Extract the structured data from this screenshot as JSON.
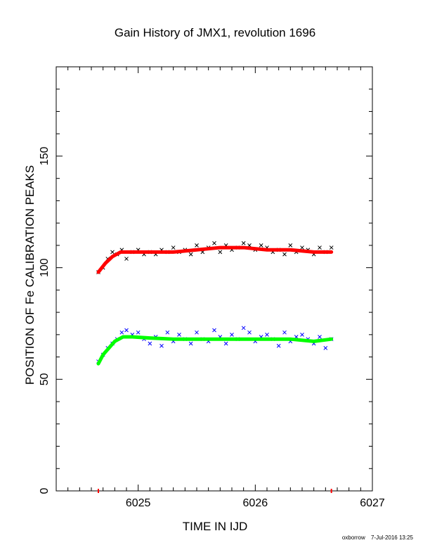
{
  "title": "Gain History of JMX1, revolution 1696",
  "footer": {
    "user": "oxborrow",
    "timestamp": "7-Jul-2016 13:25"
  },
  "chart_data": {
    "type": "scatter",
    "title": "Gain History of JMX1, revolution 1696",
    "xlabel": "TIME IN IJD",
    "ylabel": "POSITION OF Fe CALIBRATION PEAKS",
    "xlim": [
      6024.3,
      6027
    ],
    "ylim": [
      0,
      190
    ],
    "xticks": [
      6025,
      6026,
      6027
    ],
    "yticks": [
      0,
      50,
      100,
      150
    ],
    "grid": false,
    "x_range_markers": [
      6024.66,
      6026.65
    ],
    "series": [
      {
        "kind": "points",
        "marker": "x",
        "color": "#000000",
        "x": [
          6024.66,
          6024.7,
          6024.74,
          6024.78,
          6024.82,
          6024.86,
          6024.9,
          6024.95,
          6025.0,
          6025.05,
          6025.1,
          6025.15,
          6025.2,
          6025.25,
          6025.3,
          6025.35,
          6025.4,
          6025.45,
          6025.5,
          6025.55,
          6025.6,
          6025.65,
          6025.7,
          6025.75,
          6025.8,
          6025.85,
          6025.9,
          6025.95,
          6026.0,
          6026.05,
          6026.1,
          6026.15,
          6026.2,
          6026.25,
          6026.3,
          6026.35,
          6026.4,
          6026.45,
          6026.5,
          6026.55,
          6026.6,
          6026.65
        ],
        "y": [
          98,
          100,
          104,
          107,
          106,
          108,
          104,
          107,
          108,
          106,
          107,
          106,
          108,
          107,
          109,
          107,
          108,
          106,
          110,
          107,
          109,
          111,
          107,
          110,
          108,
          109,
          111,
          110,
          108,
          110,
          109,
          107,
          108,
          106,
          110,
          107,
          109,
          108,
          106,
          109,
          107,
          109
        ]
      },
      {
        "kind": "points",
        "marker": "x",
        "color": "#0000ff",
        "x": [
          6024.66,
          6024.7,
          6024.74,
          6024.78,
          6024.82,
          6024.86,
          6024.9,
          6024.95,
          6025.0,
          6025.05,
          6025.1,
          6025.15,
          6025.2,
          6025.25,
          6025.3,
          6025.35,
          6025.4,
          6025.45,
          6025.5,
          6025.55,
          6025.6,
          6025.65,
          6025.7,
          6025.75,
          6025.8,
          6025.85,
          6025.9,
          6025.95,
          6026.0,
          6026.05,
          6026.1,
          6026.15,
          6026.2,
          6026.25,
          6026.3,
          6026.35,
          6026.4,
          6026.45,
          6026.5,
          6026.55,
          6026.6,
          6026.65
        ],
        "y": [
          58,
          61,
          64,
          66,
          68,
          71,
          72,
          70,
          71,
          68,
          66,
          69,
          65,
          71,
          67,
          70,
          68,
          66,
          71,
          68,
          67,
          72,
          69,
          66,
          70,
          68,
          73,
          71,
          67,
          69,
          70,
          68,
          65,
          71,
          67,
          69,
          70,
          68,
          66,
          69,
          64,
          68
        ]
      },
      {
        "kind": "fit",
        "color": "#ff0000",
        "x": [
          6024.66,
          6024.72,
          6024.78,
          6024.85,
          6024.95,
          6025.1,
          6025.3,
          6025.5,
          6025.7,
          6025.9,
          6026.1,
          6026.3,
          6026.5,
          6026.65
        ],
        "y": [
          98,
          102,
          105,
          107,
          107,
          107,
          107,
          108,
          109,
          109,
          108,
          108,
          107,
          107
        ]
      },
      {
        "kind": "fit",
        "color": "#00ff00",
        "x": [
          6024.66,
          6024.7,
          6024.75,
          6024.8,
          6024.87,
          6024.95,
          6025.1,
          6025.3,
          6025.5,
          6025.7,
          6025.9,
          6026.1,
          6026.3,
          6026.5,
          6026.65
        ],
        "y": [
          57,
          61,
          64,
          67,
          69,
          69,
          68.5,
          68,
          68,
          68,
          68,
          68,
          68,
          67,
          68
        ]
      }
    ]
  }
}
